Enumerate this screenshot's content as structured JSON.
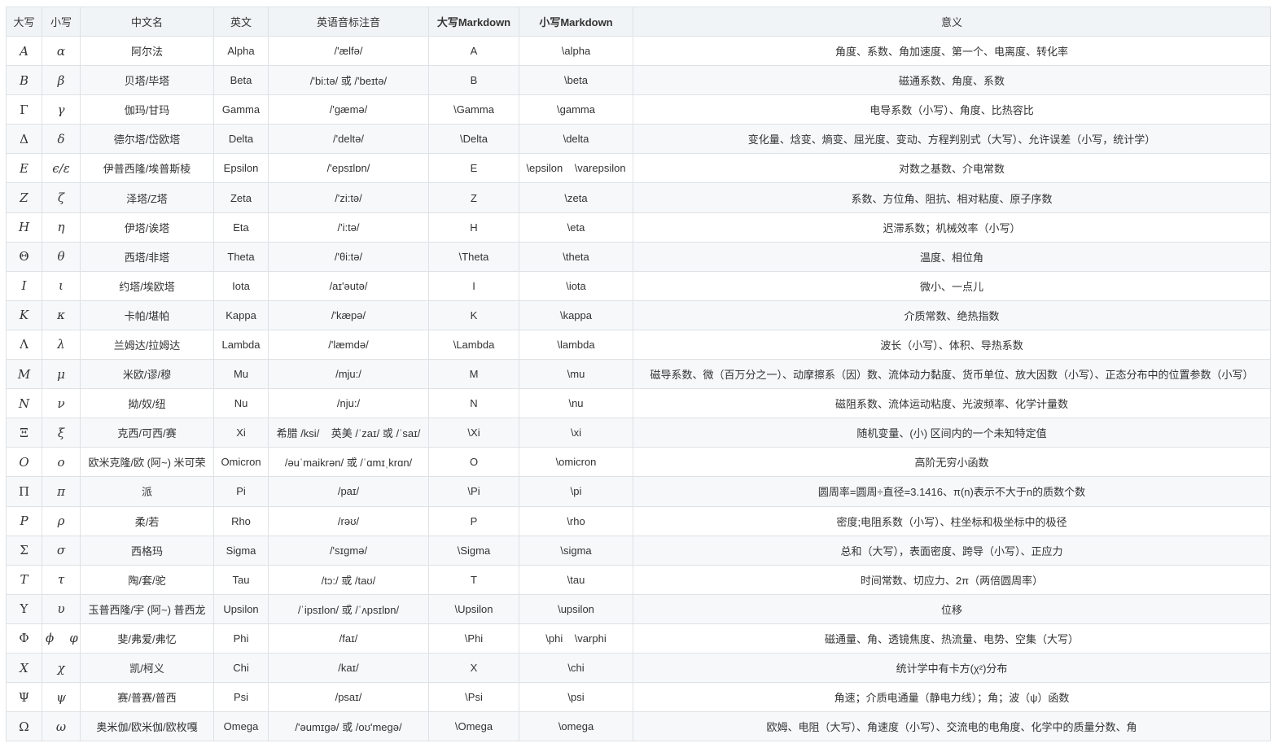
{
  "headers": [
    "大写",
    "小写",
    "中文名",
    "英文",
    "英语音标注音",
    "大写Markdown",
    "小写Markdown",
    "意义"
  ],
  "rows": [
    {
      "upper": "A",
      "upper_style": "it",
      "lower": "α",
      "cn": "阿尔法",
      "en": "Alpha",
      "ipa": "/'ælfə/",
      "md_upper": "A",
      "md_lower": "\\alpha",
      "meaning": "角度、系数、角加速度、第一个、电离度、转化率"
    },
    {
      "upper": "B",
      "upper_style": "it",
      "lower": "β",
      "cn": "贝塔/毕塔",
      "en": "Beta",
      "ipa": "/'bi:tə/ 或 /'beɪtə/",
      "md_upper": "B",
      "md_lower": "\\beta",
      "meaning": "磁通系数、角度、系数"
    },
    {
      "upper": "Γ",
      "upper_style": "up",
      "lower": "γ",
      "cn": "伽玛/甘玛",
      "en": "Gamma",
      "ipa": "/'gæmə/",
      "md_upper": "\\Gamma",
      "md_lower": "\\gamma",
      "meaning": "电导系数（小写）、角度、比热容比"
    },
    {
      "upper": "Δ",
      "upper_style": "up",
      "lower": "δ",
      "cn": "德尔塔/岱欧塔",
      "en": "Delta",
      "ipa": "/'deltə/",
      "md_upper": "\\Delta",
      "md_lower": "\\delta",
      "meaning": "变化量、焓变、熵变、屈光度、变动、方程判别式（大写）、允许误差（小写，统计学）"
    },
    {
      "upper": "E",
      "upper_style": "it",
      "lower": "ϵ/ε",
      "cn": "伊普西隆/埃普斯棱",
      "en": "Epsilon",
      "ipa": "/'epsɪlɒn/",
      "md_upper": "E",
      "md_lower": "\\epsilon    \\varepsilon",
      "meaning": "对数之基数、介电常数"
    },
    {
      "upper": "Z",
      "upper_style": "it",
      "lower": "ζ",
      "cn": "泽塔/Z塔",
      "en": "Zeta",
      "ipa": "/'zi:tə/",
      "md_upper": "Z",
      "md_lower": "\\zeta",
      "meaning": "系数、方位角、阻抗、相对粘度、原子序数"
    },
    {
      "upper": "H",
      "upper_style": "it",
      "lower": "η",
      "cn": "伊塔/诶塔",
      "en": "Eta",
      "ipa": "/'i:tə/",
      "md_upper": "H",
      "md_lower": "\\eta",
      "meaning": "迟滞系数；机械效率（小写）"
    },
    {
      "upper": "Θ",
      "upper_style": "up",
      "lower": "θ",
      "cn": "西塔/非塔",
      "en": "Theta",
      "ipa": "/'θi:tə/",
      "md_upper": "\\Theta",
      "md_lower": "\\theta",
      "meaning": "温度、相位角"
    },
    {
      "upper": "I",
      "upper_style": "it",
      "lower": "ι",
      "cn": "约塔/埃欧塔",
      "en": "Iota",
      "ipa": "/aɪ'əutə/",
      "md_upper": "I",
      "md_lower": "\\iota",
      "meaning": "微小、一点儿"
    },
    {
      "upper": "K",
      "upper_style": "it",
      "lower": "κ",
      "cn": "卡帕/堪帕",
      "en": "Kappa",
      "ipa": "/'kæpə/",
      "md_upper": "K",
      "md_lower": "\\kappa",
      "meaning": "介质常数、绝热指数"
    },
    {
      "upper": "Λ",
      "upper_style": "up",
      "lower": "λ",
      "cn": "兰姆达/拉姆达",
      "en": "Lambda",
      "ipa": "/'læmdə/",
      "md_upper": "\\Lambda",
      "md_lower": "\\lambda",
      "meaning": "波长（小写）、体积、导热系数"
    },
    {
      "upper": "M",
      "upper_style": "it",
      "lower": "μ",
      "cn": "米欧/谬/穆",
      "en": "Mu",
      "ipa": "/mju:/",
      "md_upper": "M",
      "md_lower": "\\mu",
      "meaning": "磁导系数、微（百万分之一）、动摩擦系（因）数、流体动力黏度、货币单位、放大因数（小写）、正态分布中的位置参数（小写）"
    },
    {
      "upper": "N",
      "upper_style": "it",
      "lower": "ν",
      "cn": "拗/奴/纽",
      "en": "Nu",
      "ipa": "/nju:/",
      "md_upper": "N",
      "md_lower": "\\nu",
      "meaning": "磁阻系数、流体运动粘度、光波频率、化学计量数"
    },
    {
      "upper": "Ξ",
      "upper_style": "up",
      "lower": "ξ",
      "cn": "克西/可西/赛",
      "en": "Xi",
      "ipa": "希腊 /ksi/    英美 /ˈzaɪ/ 或 /ˈsaɪ/",
      "md_upper": "\\Xi",
      "md_lower": "\\xi",
      "meaning": "随机变量、(小) 区间内的一个未知特定值"
    },
    {
      "upper": "O",
      "upper_style": "it",
      "lower": "ο",
      "cn": "欧米克隆/欧 (阿~) 米可荣",
      "en": "Omicron",
      "ipa": "/əuˈmaikrən/ 或 /ˈɑmɪˌkrɑn/",
      "md_upper": "O",
      "md_lower": "\\omicron",
      "meaning": "高阶无穷小函数"
    },
    {
      "upper": "Π",
      "upper_style": "up",
      "lower": "π",
      "cn": "派",
      "en": "Pi",
      "ipa": "/paɪ/",
      "md_upper": "\\Pi",
      "md_lower": "\\pi",
      "meaning": "圆周率=圆周÷直径=3.1416、π(n)表示不大于n的质数个数"
    },
    {
      "upper": "P",
      "upper_style": "it",
      "lower": "ρ",
      "cn": "柔/若",
      "en": "Rho",
      "ipa": "/rəʊ/",
      "md_upper": "P",
      "md_lower": "\\rho",
      "meaning": "密度;电阻系数（小写）、柱坐标和极坐标中的极径"
    },
    {
      "upper": "Σ",
      "upper_style": "up",
      "lower": "σ",
      "cn": "西格玛",
      "en": "Sigma",
      "ipa": "/'sɪgmə/",
      "md_upper": "\\Sigma",
      "md_lower": "\\sigma",
      "meaning": "总和（大写），表面密度、跨导（小写）、正应力"
    },
    {
      "upper": "T",
      "upper_style": "it",
      "lower": "τ",
      "cn": "陶/套/驼",
      "en": "Tau",
      "ipa": "/tɔ:/ 或 /taʊ/",
      "md_upper": "T",
      "md_lower": "\\tau",
      "meaning": "时间常数、切应力、2π（两倍圆周率）"
    },
    {
      "upper": "Υ",
      "upper_style": "up",
      "lower": "υ",
      "cn": "玉普西隆/宇 (阿~) 普西龙",
      "en": "Upsilon",
      "ipa": "/ˈipsɪlon/ 或 /ˈʌpsɪlɒn/",
      "md_upper": "\\Upsilon",
      "md_lower": "\\upsilon",
      "meaning": "位移"
    },
    {
      "upper": "Φ",
      "upper_style": "up",
      "lower": "ϕ    φ",
      "cn": "斐/弗爱/弗忆",
      "en": "Phi",
      "ipa": "/faɪ/",
      "md_upper": "\\Phi",
      "md_lower": "\\phi    \\varphi",
      "meaning": "磁通量、角、透镜焦度、热流量、电势、空集（大写）"
    },
    {
      "upper": "X",
      "upper_style": "it",
      "lower": "χ",
      "cn": "凯/柯义",
      "en": "Chi",
      "ipa": "/kaɪ/",
      "md_upper": "X",
      "md_lower": "\\chi",
      "meaning": "统计学中有卡方(χ²)分布"
    },
    {
      "upper": "Ψ",
      "upper_style": "up",
      "lower": "ψ",
      "cn": "赛/普赛/普西",
      "en": "Psi",
      "ipa": "/psaɪ/",
      "md_upper": "\\Psi",
      "md_lower": "\\psi",
      "meaning": "角速；介质电通量（静电力线）；角；波（ψ）函数"
    },
    {
      "upper": "Ω",
      "upper_style": "up",
      "lower": "ω",
      "cn": "奥米伽/欧米伽/欧枚嘎",
      "en": "Omega",
      "ipa": "/'əumɪgə/ 或 /oʊ'megə/",
      "md_upper": "\\Omega",
      "md_lower": "\\omega",
      "meaning": "欧姆、电阻（大写）、角速度（小写）、交流电的电角度、化学中的质量分数、角"
    }
  ]
}
